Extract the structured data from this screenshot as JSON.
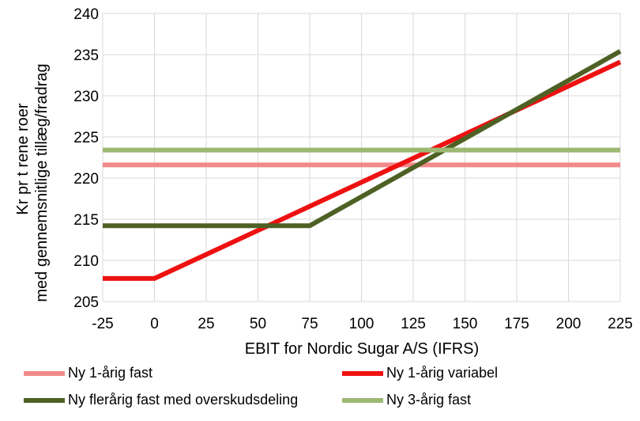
{
  "chart_data": {
    "type": "line",
    "title": "",
    "xlabel": "EBIT for Nordic Sugar A/S (IFRS)",
    "ylabel_lines": [
      "Kr pr t rene roer",
      "med gennemsnitlige tillæg/fradrag"
    ],
    "xlim": [
      -25,
      225
    ],
    "ylim": [
      205,
      240
    ],
    "xticks": [
      -25,
      0,
      25,
      50,
      75,
      100,
      125,
      150,
      175,
      200,
      225
    ],
    "yticks": [
      205,
      210,
      215,
      220,
      225,
      230,
      235,
      240
    ],
    "grid": true,
    "legend_position": "bottom",
    "series": [
      {
        "name": "Ny 1-årig fast",
        "color": "#f28a8a",
        "x": [
          -25,
          225
        ],
        "y": [
          221.6,
          221.6
        ]
      },
      {
        "name": "Ny 1-årig variabel",
        "color": "#ee1111",
        "x": [
          -25,
          0,
          225
        ],
        "y": [
          207.8,
          207.8,
          234.1
        ]
      },
      {
        "name": "Ny flerårig fast med overskudsdeling",
        "color": "#4e6124",
        "x": [
          -25,
          75,
          225
        ],
        "y": [
          214.2,
          214.2,
          235.4
        ]
      },
      {
        "name": "Ny 3-årig fast",
        "color": "#9cb872",
        "x": [
          -25,
          225
        ],
        "y": [
          223.4,
          223.4
        ]
      }
    ]
  }
}
